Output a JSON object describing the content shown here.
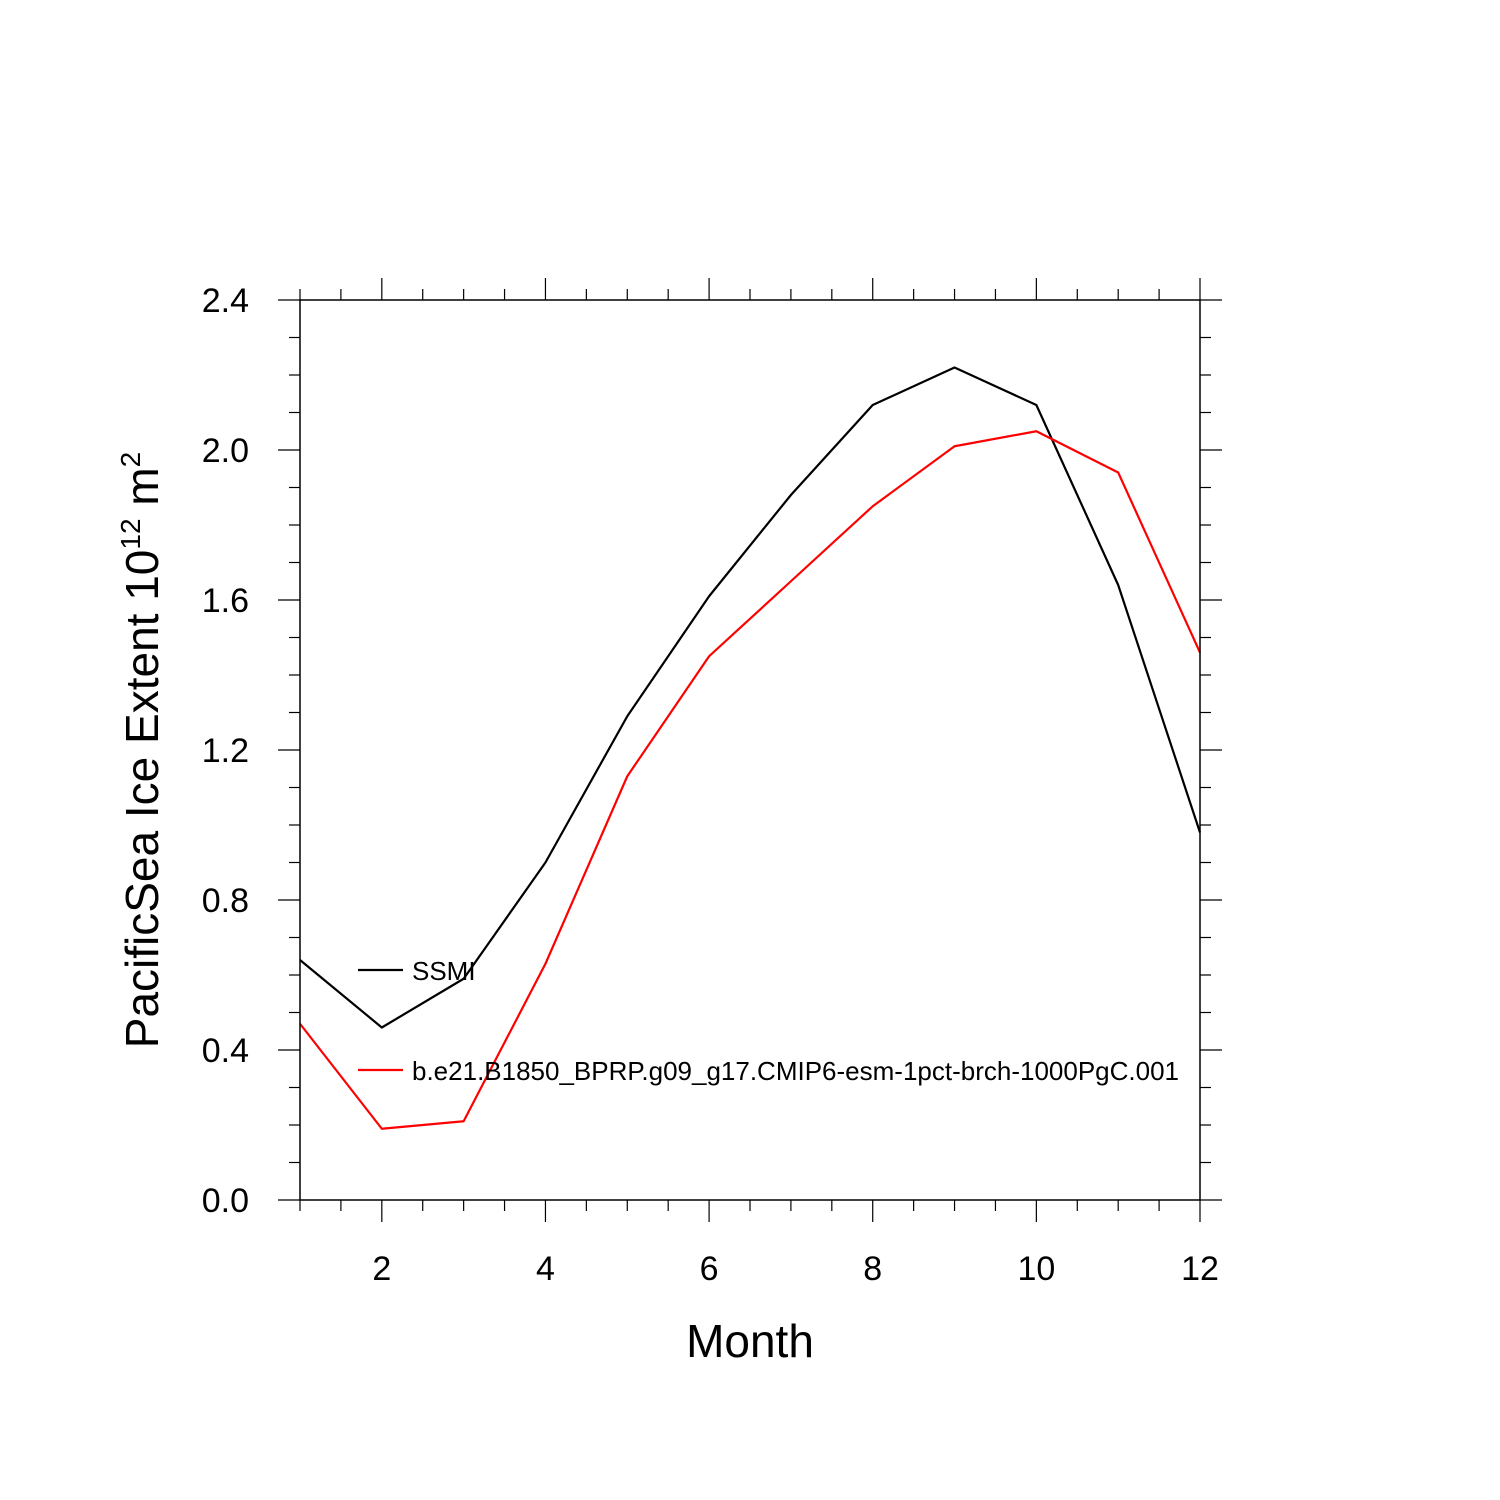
{
  "chart_data": {
    "type": "line",
    "title": "",
    "xlabel": "Month",
    "ylabel": {
      "prefix": "PacificSea Ice Extent 10",
      "sup1": "12",
      "middle": " m",
      "sup2": "2"
    },
    "x": [
      1,
      2,
      3,
      4,
      5,
      6,
      7,
      8,
      9,
      10,
      11,
      12
    ],
    "xlim": [
      1,
      12
    ],
    "ylim": [
      0,
      2.4
    ],
    "xticks": [
      2,
      4,
      6,
      8,
      10,
      12
    ],
    "xtick_labels": [
      "2",
      "4",
      "6",
      "8",
      "10",
      "12"
    ],
    "yticks": [
      0,
      0.4,
      0.8,
      1.2,
      1.6,
      2.0,
      2.4
    ],
    "ytick_labels": [
      "0.0",
      "0.4",
      "0.8",
      "1.2",
      "1.6",
      "2.0",
      "2.4"
    ],
    "grid": false,
    "legend_position": "inside-left",
    "series": [
      {
        "name": "SSMI",
        "color": "#000000",
        "values": [
          0.64,
          0.46,
          0.59,
          0.9,
          1.29,
          1.61,
          1.88,
          2.12,
          2.22,
          2.12,
          1.64,
          0.98
        ]
      },
      {
        "name": "b.e21.B1850_BPRP.g09_g17.CMIP6-esm-1pct-brch-1000PgC.001",
        "color": "#ff0000",
        "values": [
          0.47,
          0.19,
          0.21,
          0.63,
          1.13,
          1.45,
          1.65,
          1.85,
          2.01,
          2.05,
          1.94,
          1.46
        ]
      }
    ]
  }
}
